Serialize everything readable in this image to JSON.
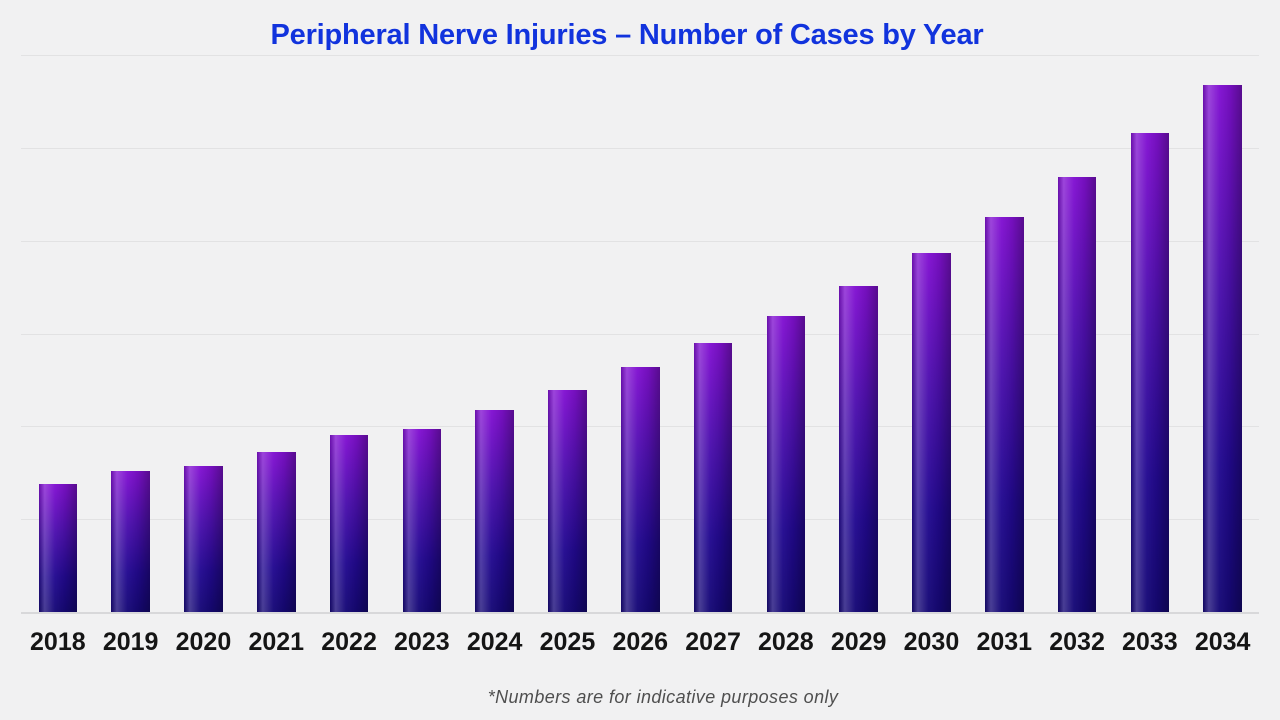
{
  "page": {
    "background_color": "#f1f1f2",
    "gridline_color": "#e2e2e3",
    "baseline_color": "#d8d8da"
  },
  "chart_data": {
    "type": "bar",
    "title": "Peripheral Nerve Injuries – Number of Cases by Year",
    "title_color": "#1133dd",
    "xlabel": "",
    "ylabel": "",
    "categories": [
      "2018",
      "2019",
      "2020",
      "2021",
      "2022",
      "2023",
      "2024",
      "2025",
      "2026",
      "2027",
      "2028",
      "2029",
      "2030",
      "2031",
      "2032",
      "2033",
      "2034"
    ],
    "values": [
      13.9,
      15.3,
      15.8,
      17.3,
      19.2,
      19.8,
      21.9,
      24.0,
      26.5,
      29.1,
      32.0,
      35.2,
      38.8,
      42.7,
      47.0,
      51.7,
      56.9
    ],
    "ylim": [
      0,
      60
    ],
    "gridline_step": 10,
    "grid": "horizontal lines only",
    "y_tick_labels_visible": false,
    "legend": "none",
    "bar_gradient_top_color": "#8211d2",
    "bar_gradient_bottom_color": "#150875",
    "x_label_color": "#151515"
  },
  "footnote": {
    "text": "*Numbers are for indicative purposes only",
    "color": "#4f4f4f"
  }
}
